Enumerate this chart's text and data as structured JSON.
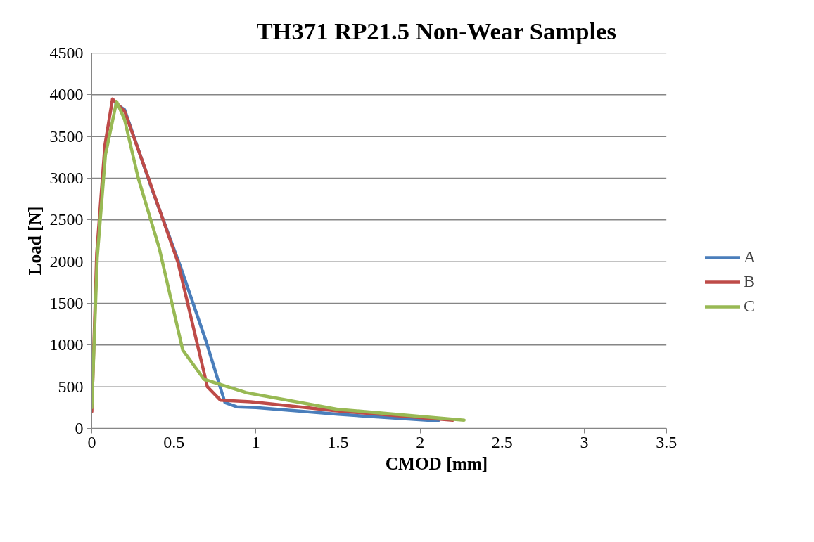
{
  "chart_data": {
    "type": "line",
    "title": "TH371 RP21.5 Non-Wear Samples",
    "xlabel": "CMOD [mm]",
    "ylabel": "Load [N]",
    "xlim": [
      0,
      3.5
    ],
    "xticks": [
      0,
      0.5,
      1,
      1.5,
      2,
      2.5,
      3,
      3.5
    ],
    "ylim": [
      0,
      4500
    ],
    "yticks": [
      0,
      500,
      1000,
      1500,
      2000,
      2500,
      3000,
      3500,
      4000,
      4500
    ],
    "grid": "y",
    "legend": "right",
    "marker": "none",
    "line_style": "solid",
    "series": [
      {
        "name": "A",
        "color": "#4a7ebb",
        "x": [
          0.147,
          0.2,
          0.368,
          0.54,
          0.697,
          0.811,
          0.883,
          1.0,
          1.5,
          2.11
        ],
        "values": [
          3890,
          3820,
          2860,
          1940,
          1040,
          310,
          260,
          250,
          170,
          90
        ]
      },
      {
        "name": "B",
        "color": "#be4b48",
        "x": [
          0,
          0.03,
          0.08,
          0.126,
          0.2,
          0.354,
          0.525,
          0.704,
          0.783,
          0.968,
          1.495,
          2.2
        ],
        "values": [
          200,
          2100,
          3400,
          3950,
          3800,
          2950,
          1990,
          500,
          340,
          320,
          210,
          100
        ]
      },
      {
        "name": "C",
        "color": "#98b954",
        "x": [
          0,
          0.033,
          0.083,
          0.151,
          0.2,
          0.283,
          0.411,
          0.554,
          0.683,
          0.94,
          1.497,
          2.268
        ],
        "values": [
          250,
          2050,
          3280,
          3920,
          3700,
          3000,
          2160,
          940,
          590,
          430,
          230,
          100
        ]
      }
    ]
  }
}
